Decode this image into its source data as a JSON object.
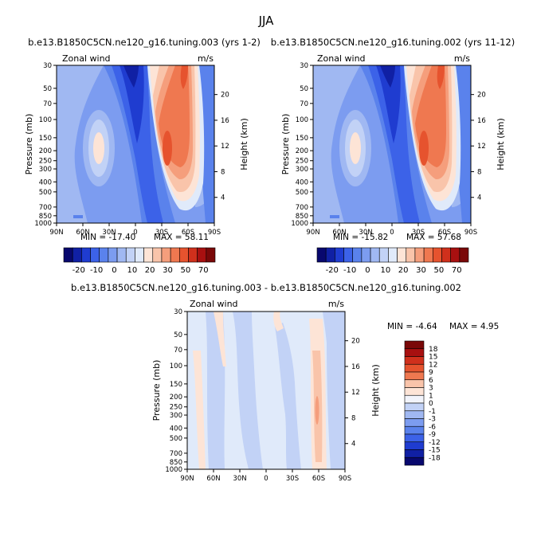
{
  "figure_title": "JJA",
  "chart_data": [
    {
      "type": "heatmap",
      "title": "b.e13.B1850C5CN.ne120_g16.tuning.003 (yrs 1-2)",
      "variable": "Zonal wind",
      "units": "m/s",
      "ylabel": "Pressure (mb)",
      "ylabel_right": "Height (km)",
      "x_ticks": [
        "90N",
        "60N",
        "30N",
        "0",
        "30S",
        "60S",
        "90S"
      ],
      "y_ticks": [
        "30",
        "50",
        "70",
        "100",
        "150",
        "200",
        "250",
        "300",
        "400",
        "500",
        "700",
        "850",
        "1000"
      ],
      "height_ticks": [
        "20",
        "16",
        "12",
        "8",
        "4"
      ],
      "min_label": "MIN = -17.40",
      "max_label": "MAX = 58.11",
      "colorbar_labels": [
        "-20",
        "-10",
        "0",
        "10",
        "20",
        "30",
        "50",
        "70"
      ],
      "min": -17.4,
      "max": 58.11
    },
    {
      "type": "heatmap",
      "title": "b.e13.B1850C5CN.ne120_g16.tuning.002 (yrs 11-12)",
      "variable": "Zonal wind",
      "units": "m/s",
      "ylabel": "Pressure (mb)",
      "ylabel_right": "Height (km)",
      "x_ticks": [
        "90N",
        "60N",
        "30N",
        "0",
        "30S",
        "60S",
        "90S"
      ],
      "y_ticks": [
        "30",
        "50",
        "70",
        "100",
        "150",
        "200",
        "250",
        "300",
        "400",
        "500",
        "700",
        "850",
        "1000"
      ],
      "height_ticks": [
        "20",
        "16",
        "12",
        "8",
        "4"
      ],
      "min_label": "MIN = -15.82",
      "max_label": "MAX = 57.68",
      "colorbar_labels": [
        "-20",
        "-10",
        "0",
        "10",
        "20",
        "30",
        "50",
        "70"
      ],
      "min": -15.82,
      "max": 57.68
    },
    {
      "type": "heatmap",
      "title": "b.e13.B1850C5CN.ne120_g16.tuning.003 - b.e13.B1850C5CN.ne120_g16.tuning.002",
      "variable": "Zonal wind",
      "units": "m/s",
      "ylabel": "Pressure (mb)",
      "ylabel_right": "Height (km)",
      "x_ticks": [
        "90N",
        "60N",
        "30N",
        "0",
        "30S",
        "60S",
        "90S"
      ],
      "y_ticks": [
        "30",
        "50",
        "70",
        "100",
        "150",
        "200",
        "250",
        "300",
        "400",
        "500",
        "700",
        "850",
        "1000"
      ],
      "height_ticks": [
        "20",
        "16",
        "12",
        "8",
        "4"
      ],
      "min_label": "MIN =   -4.64",
      "max_label": "MAX =   4.95",
      "colorbar_labels": [
        "18",
        "15",
        "12",
        "9",
        "6",
        "3",
        "1",
        "0",
        "-1",
        "-3",
        "-6",
        "-9",
        "-12",
        "-15",
        "-18"
      ],
      "min": -4.64,
      "max": 4.95
    }
  ],
  "colors": {
    "cbar_main": [
      "#08086e",
      "#1020a4",
      "#1f3cd0",
      "#3c62e8",
      "#5a82ec",
      "#7c9cf0",
      "#a0b8f2",
      "#c2d2f6",
      "#e0eafa",
      "#fde4d6",
      "#f9c4aa",
      "#f59e7c",
      "#ef7850",
      "#e6532e",
      "#d0301c",
      "#a81010",
      "#7a0808"
    ],
    "cbar_diff": [
      "#7a0808",
      "#a81010",
      "#d0301c",
      "#e6532e",
      "#ef7850",
      "#f9c4aa",
      "#fde4d6",
      "#f2f4fb",
      "#c2d2f6",
      "#a0b8f2",
      "#7c9cf0",
      "#5a82ec",
      "#3c62e8",
      "#1f3cd0",
      "#1020a4",
      "#08086e"
    ]
  }
}
